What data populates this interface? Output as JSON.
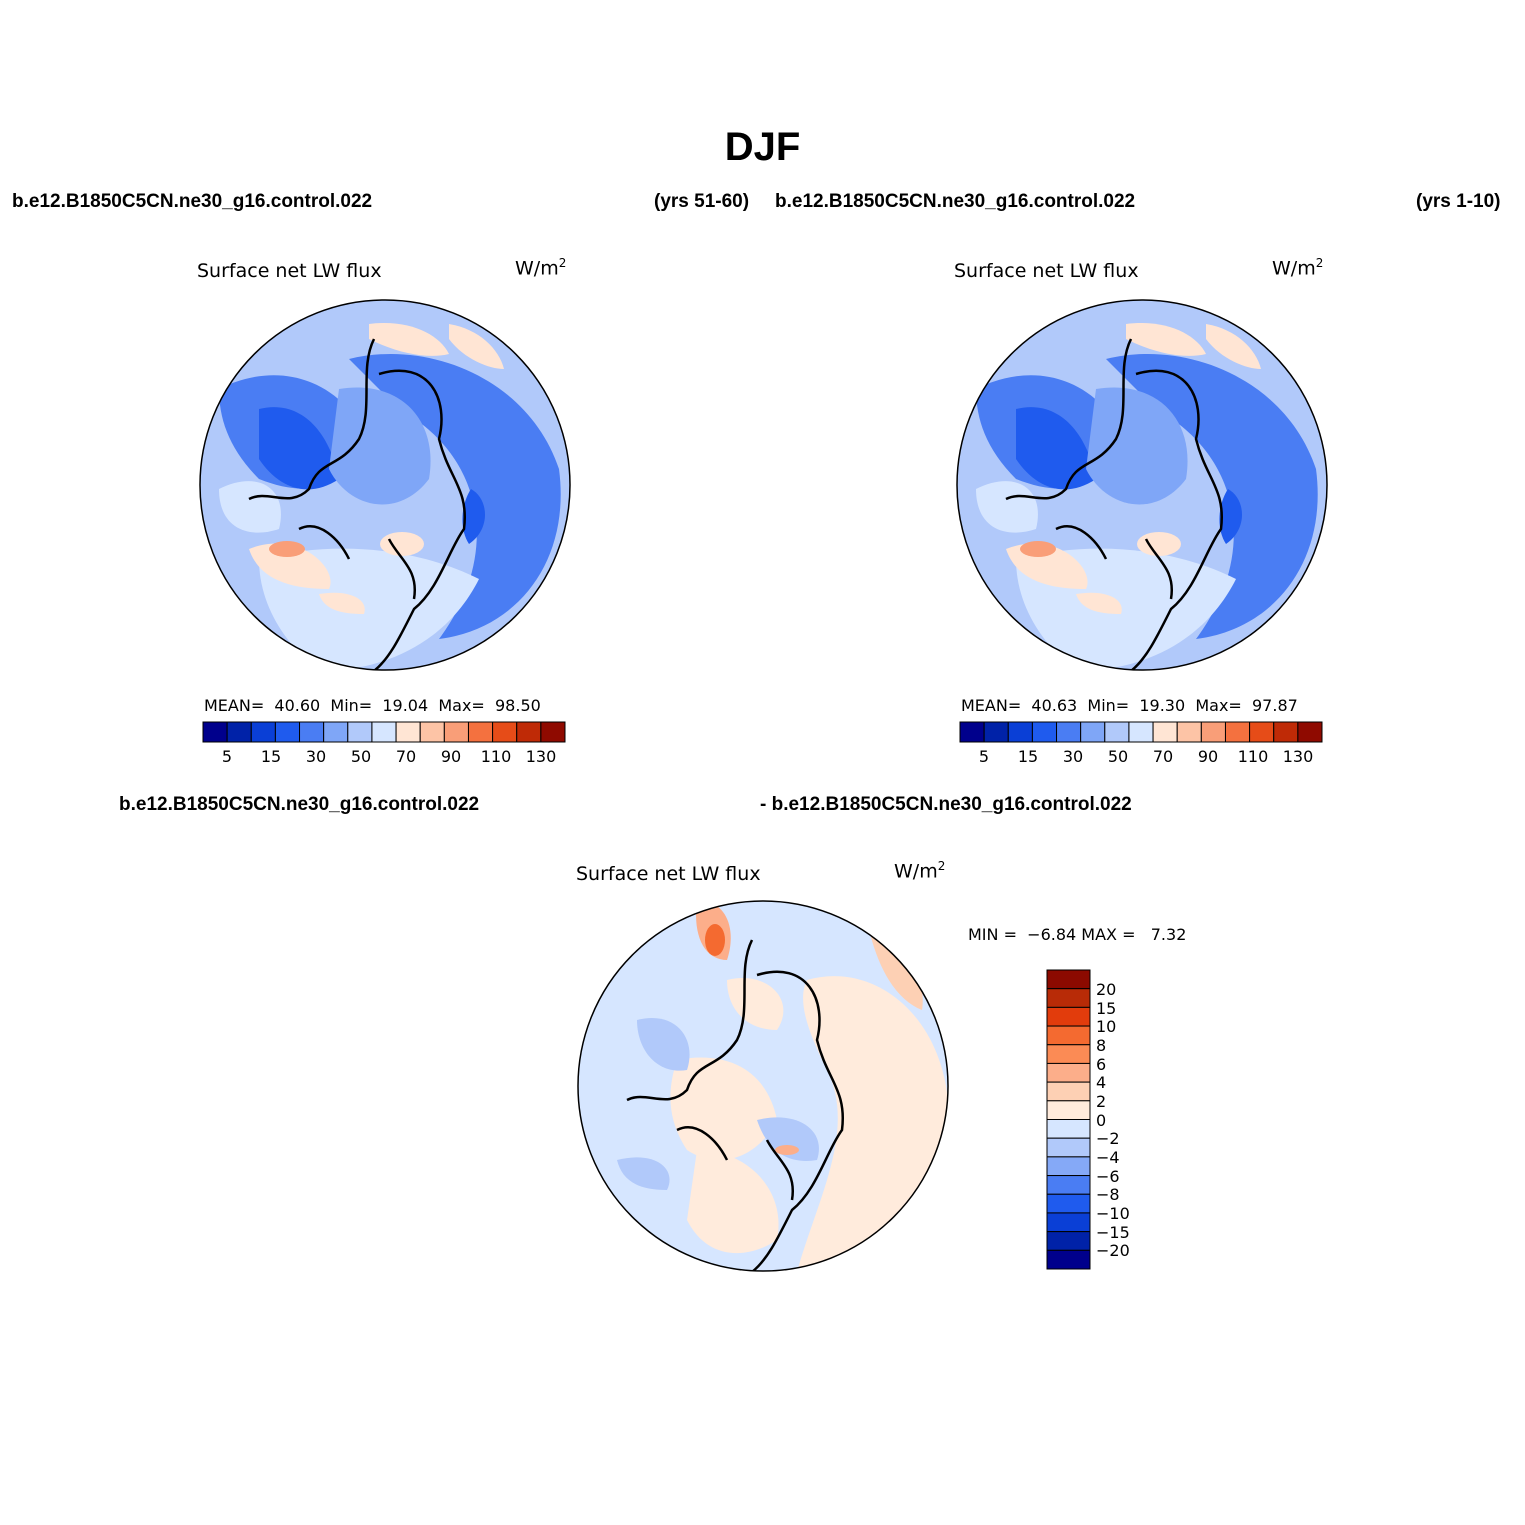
{
  "title": "DJF",
  "panels": [
    {
      "case_left": "b.e12.B1850C5CN.ne30_g16.control.022",
      "case_right": "(yrs 51-60)",
      "plot_title": "Surface net LW flux",
      "units_base": "W/m",
      "units_exp": "2",
      "mean_label": "MEAN=",
      "mean_value": "40.60",
      "min_label": "Min=",
      "min_value": "19.04",
      "max_label": "Max=",
      "max_value": "98.50"
    },
    {
      "case_left": "b.e12.B1850C5CN.ne30_g16.control.022",
      "case_right": "(yrs 1-10)",
      "plot_title": "Surface net LW flux",
      "units_base": "W/m",
      "units_exp": "2",
      "mean_label": "MEAN=",
      "mean_value": "40.63",
      "min_label": "Min=",
      "min_value": "19.30",
      "max_label": "Max=",
      "max_value": "97.87"
    }
  ],
  "colorbar_main": {
    "labels": [
      "5",
      "15",
      "30",
      "50",
      "70",
      "90",
      "110",
      "130"
    ],
    "colors": [
      "#00008c",
      "#0022a8",
      "#0a3fd6",
      "#1f5bee",
      "#4a7df3",
      "#7fa6f7",
      "#b1c9fa",
      "#d6e6ff",
      "#ffe5d4",
      "#fdc4a6",
      "#f99e78",
      "#f4713f",
      "#e64c18",
      "#bf2a06",
      "#8f0a00"
    ]
  },
  "diff_panel": {
    "case_left": "b.e12.B1850C5CN.ne30_g16.control.022",
    "case_right": "- b.e12.B1850C5CN.ne30_g16.control.022",
    "plot_title": "Surface net LW flux",
    "units_base": "W/m",
    "units_exp": "2",
    "min_label": "MIN =",
    "min_value": "−6.84",
    "max_label": "MAX =",
    "max_value": "7.32"
  },
  "colorbar_diff": {
    "labels": [
      "20",
      "15",
      "10",
      "8",
      "6",
      "4",
      "2",
      "0",
      "−2",
      "−4",
      "−6",
      "−8",
      "−10",
      "−15",
      "−20"
    ],
    "colors": [
      "#8c0a00",
      "#b82b07",
      "#e23c0c",
      "#f46a30",
      "#fb8b55",
      "#fcae8a",
      "#fdd0b4",
      "#ffebdc",
      "#d6e6ff",
      "#b1c9fa",
      "#85a9f7",
      "#4a7df3",
      "#1f5bee",
      "#0a3fd6",
      "#0022a8",
      "#00008c"
    ]
  }
}
